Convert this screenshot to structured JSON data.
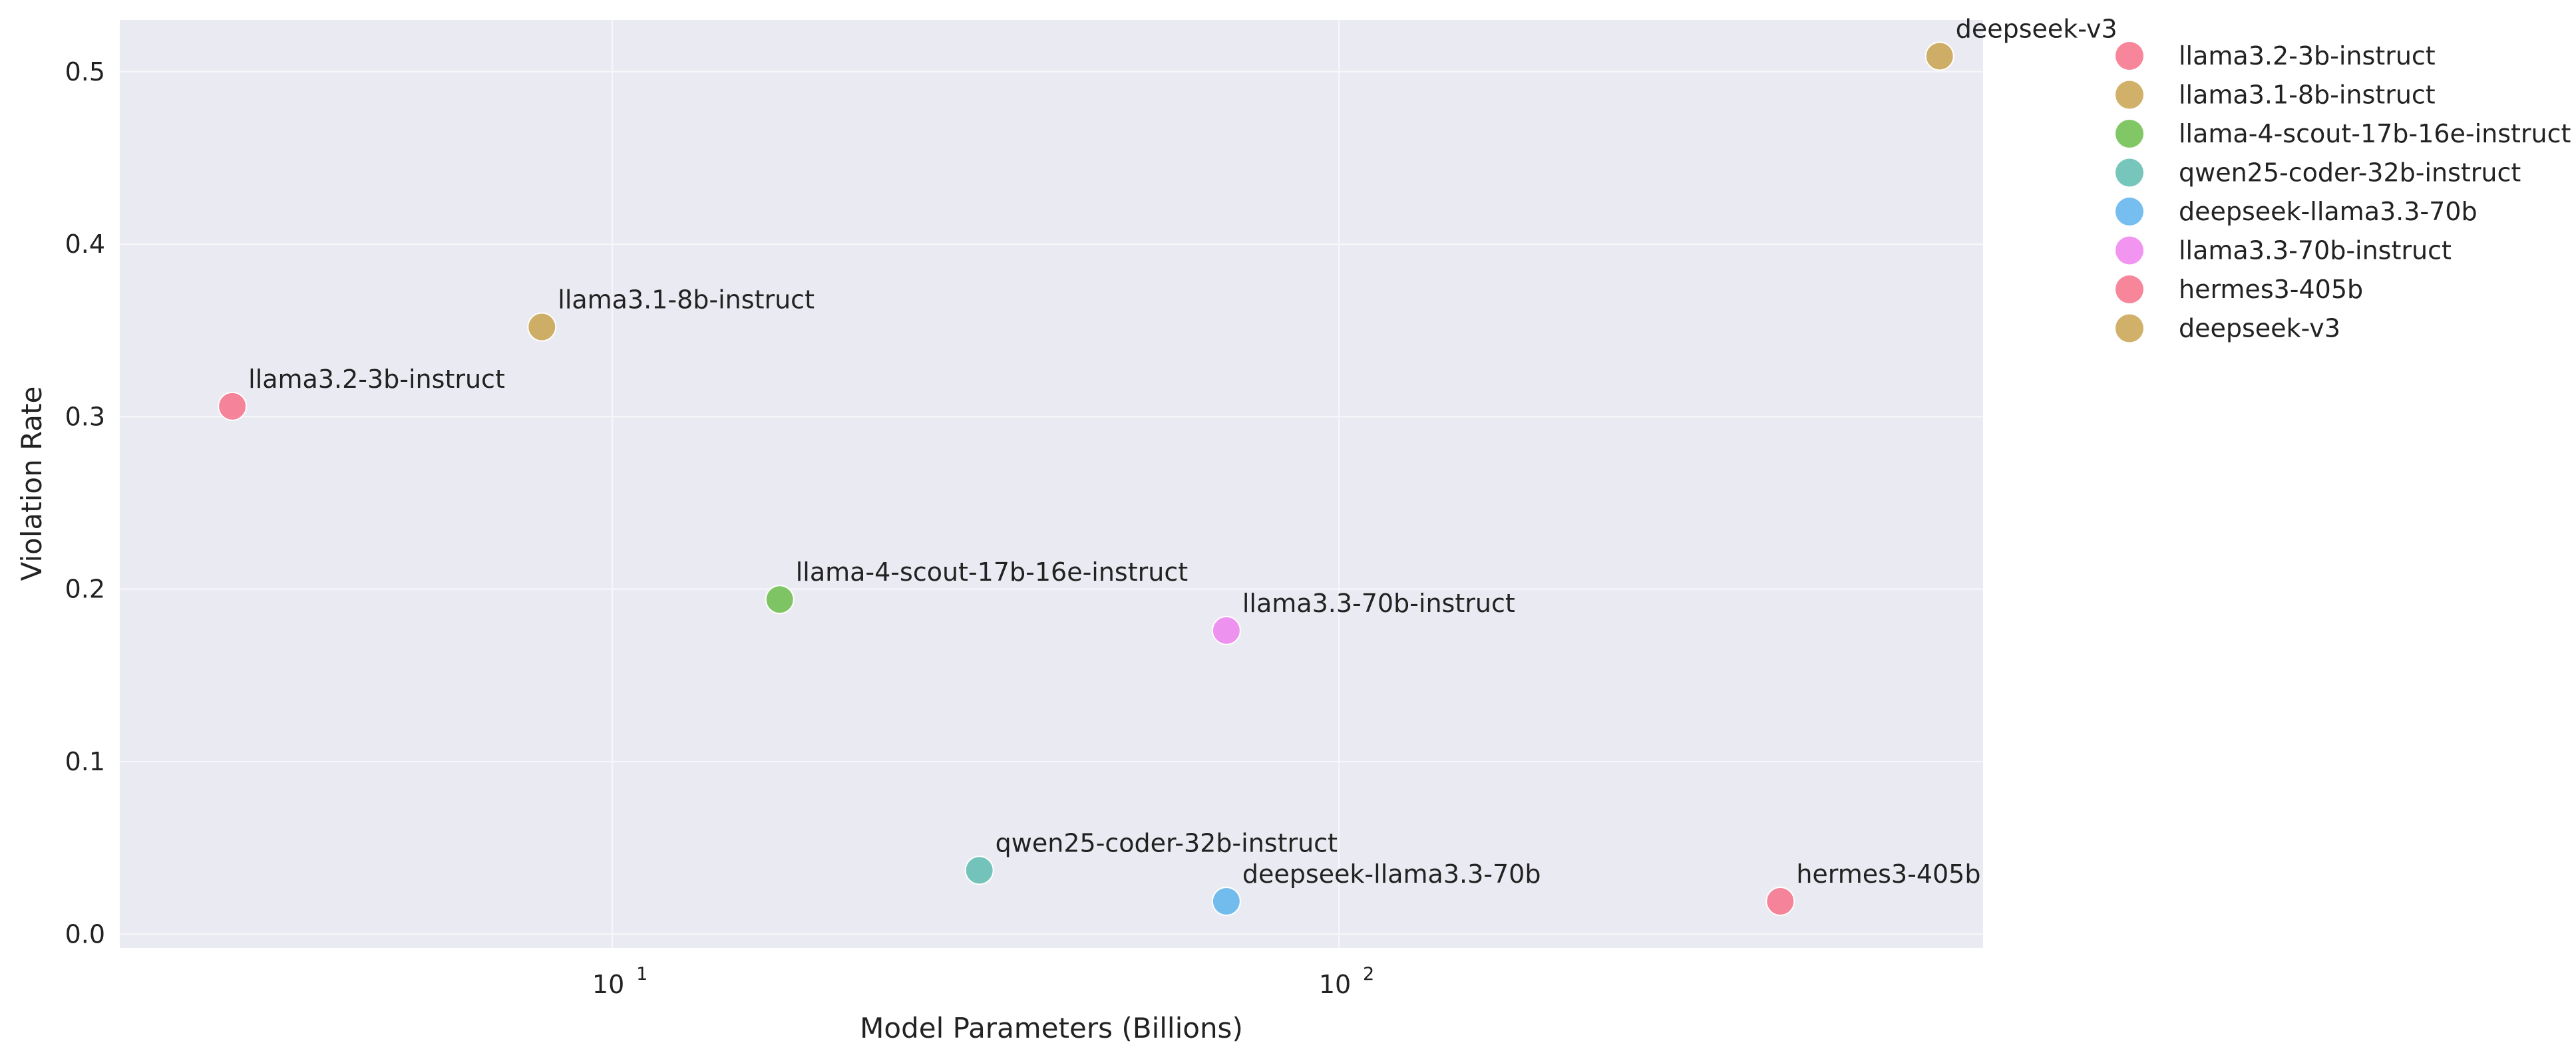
{
  "chart_data": {
    "type": "scatter",
    "xlabel": "Model Parameters (Billions)",
    "ylabel": "Violation Rate",
    "xscale": "log",
    "xlim": [
      2.1,
      770
    ],
    "ylim": [
      -0.008,
      0.53
    ],
    "x_ticks": [
      10,
      100
    ],
    "x_tick_labels": [
      {
        "base": "10",
        "exp": "1"
      },
      {
        "base": "10",
        "exp": "2"
      }
    ],
    "y_ticks": [
      0.0,
      0.1,
      0.2,
      0.3,
      0.4,
      0.5
    ],
    "y_tick_labels": [
      "0.0",
      "0.1",
      "0.2",
      "0.3",
      "0.4",
      "0.5"
    ],
    "grid": true,
    "legend_position": "outside-right-top",
    "series": [
      {
        "name": "llama3.2-3b-instruct",
        "label": "llama3.2-3b-instruct",
        "color": "#f77189",
        "x": 3,
        "y": 0.306
      },
      {
        "name": "llama3.1-8b-instruct",
        "label": "llama3.1-8b-instruct",
        "color": "#c9a34f",
        "x": 8,
        "y": 0.352
      },
      {
        "name": "llama-4-scout-17b-16e-instruct",
        "label": "llama-4-scout-17b-16e-instruct",
        "color": "#6bbd4b",
        "x": 17,
        "y": 0.194
      },
      {
        "name": "qwen25-coder-32b-instruct",
        "label": "qwen25-coder-32b-instruct",
        "color": "#5fbcb0",
        "x": 32,
        "y": 0.037
      },
      {
        "name": "deepseek-llama3.3-70b",
        "label": "deepseek-llama3.3-70b",
        "color": "#5db3ec",
        "x": 70,
        "y": 0.019
      },
      {
        "name": "llama3.3-70b-instruct",
        "label": "llama3.3-70b-instruct",
        "color": "#ee82ee",
        "x": 70,
        "y": 0.176
      },
      {
        "name": "hermes3-405b",
        "label": "hermes3-405b",
        "color": "#f77189",
        "x": 405,
        "y": 0.019
      },
      {
        "name": "deepseek-v3",
        "label": "deepseek-v3",
        "color": "#c9a34f",
        "x": 671,
        "y": 0.509
      }
    ]
  }
}
